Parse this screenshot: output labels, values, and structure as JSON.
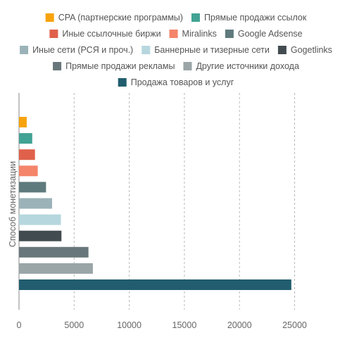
{
  "chart_data": {
    "type": "bar",
    "orientation": "horizontal",
    "title": "",
    "xlabel": "",
    "ylabel": "Способ монетизации",
    "xlim": [
      0,
      25000
    ],
    "x_ticks": [
      "0",
      "5000",
      "10000",
      "15000",
      "20000",
      "25000"
    ],
    "grid": "vertical-dashed",
    "legend_position": "top",
    "series": [
      {
        "name": "CPA (партнерские программы)",
        "value": 700,
        "color": "#f7a30c"
      },
      {
        "name": "Прямые продажи ссылок",
        "value": 1200,
        "color": "#41a394"
      },
      {
        "name": "Иные ссылочные биржи",
        "value": 1450,
        "color": "#e0614b"
      },
      {
        "name": "Miralinks",
        "value": 1700,
        "color": "#f4846a"
      },
      {
        "name": "Google Adsense",
        "value": 2450,
        "color": "#5f7a7d"
      },
      {
        "name": "Иные сети (РСЯ и проч.)",
        "value": 3000,
        "color": "#9bb3b8"
      },
      {
        "name": "Баннерные и тизерные сети",
        "value": 3800,
        "color": "#b6d7de"
      },
      {
        "name": "Gogetlinks",
        "value": 3850,
        "color": "#424c50"
      },
      {
        "name": "Прямые продажи рекламы",
        "value": 6300,
        "color": "#68777b"
      },
      {
        "name": "Другие источники дохода",
        "value": 6700,
        "color": "#9aa5a8"
      },
      {
        "name": "Продажа товаров и услуг",
        "value": 24700,
        "color": "#215d6e"
      }
    ]
  }
}
